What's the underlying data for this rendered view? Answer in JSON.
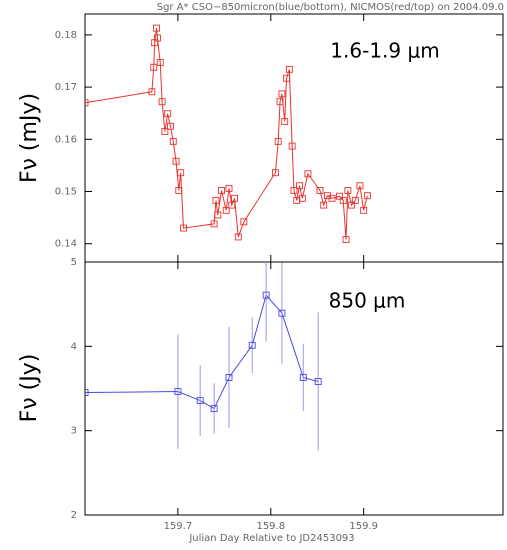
{
  "chart_data": [
    {
      "type": "line",
      "title": "Sgr A* CSO−850micron(blue/bottom), NICMOS(red/top) on 2004.09.0",
      "ylabel": "Fν (mJy)",
      "annotation": "1.6-1.9 μm",
      "xlim": [
        159.6,
        160.05
      ],
      "xticks": [
        159.7,
        159.8,
        159.9
      ],
      "ylim": [
        0.1365,
        0.184
      ],
      "yticks": [
        0.14,
        0.15,
        0.16,
        0.17,
        0.18
      ],
      "series": [
        {
          "name": "NICMOS",
          "color": "#e8322e",
          "x": [
            159.6,
            159.672,
            159.674,
            159.675,
            159.677,
            159.678,
            159.681,
            159.683,
            159.686,
            159.689,
            159.692,
            159.695,
            159.698,
            159.701,
            159.703,
            159.706,
            159.739,
            159.741,
            159.743,
            159.747,
            159.752,
            159.755,
            159.758,
            159.761,
            159.765,
            159.771,
            159.805,
            159.808,
            159.81,
            159.812,
            159.815,
            159.817,
            159.82,
            159.823,
            159.825,
            159.828,
            159.831,
            159.834,
            159.84,
            159.853,
            159.857,
            159.861,
            159.866,
            159.874,
            159.878,
            159.881,
            159.883,
            159.887,
            159.891,
            159.896,
            159.9,
            159.904
          ],
          "values": [
            0.167,
            0.1691,
            0.1738,
            0.1785,
            0.1813,
            0.1794,
            0.1747,
            0.1672,
            0.1615,
            0.1649,
            0.1625,
            0.1596,
            0.1558,
            0.1502,
            0.1536,
            0.143,
            0.1438,
            0.1483,
            0.1455,
            0.1502,
            0.1464,
            0.1506,
            0.1474,
            0.1487,
            0.1413,
            0.1442,
            0.1536,
            0.1596,
            0.1672,
            0.1687,
            0.1634,
            0.1717,
            0.1734,
            0.1587,
            0.1502,
            0.1483,
            0.1511,
            0.1487,
            0.1534,
            0.1502,
            0.1474,
            0.1492,
            0.1487,
            0.1491,
            0.1483,
            0.1408,
            0.1502,
            0.1474,
            0.1483,
            0.1511,
            0.1464,
            0.1492
          ]
        }
      ]
    },
    {
      "type": "errorbar",
      "ylabel": "Fν (Jy)",
      "xlabel": "Julian Day Relative to JD2453093",
      "annotation": "850 μm",
      "xlim": [
        159.6,
        160.05
      ],
      "xticks": [
        159.7,
        159.8,
        159.9
      ],
      "ylim": [
        2,
        5
      ],
      "yticks": [
        2,
        3,
        4,
        5
      ],
      "series": [
        {
          "name": "CSO 850 micron",
          "color": "#4a4ae0",
          "x": [
            159.6,
            159.7,
            159.724,
            159.739,
            159.755,
            159.78,
            159.795,
            159.812,
            159.835,
            159.851
          ],
          "values": [
            3.452,
            3.464,
            3.357,
            3.262,
            3.631,
            4.012,
            4.607,
            4.393,
            3.631,
            3.583
          ],
          "errors": [
            null,
            0.68,
            0.42,
            0.3,
            0.6,
            0.33,
            0.55,
            0.6,
            0.4,
            0.82
          ]
        }
      ]
    }
  ]
}
